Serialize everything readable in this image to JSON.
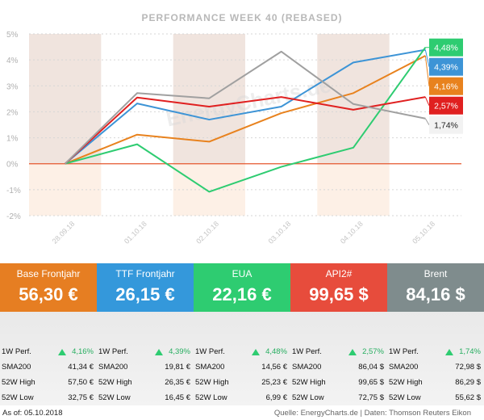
{
  "chart_data": {
    "type": "line",
    "title": "PERFORMANCE  WEEK 40 (REBASED)",
    "categories": [
      "28.09.18",
      "01.10.18",
      "02.10.18",
      "03.10.18",
      "04.10.18",
      "05.10.18"
    ],
    "y_ticks": [
      "5%",
      "4%",
      "3%",
      "2%",
      "1%",
      "0%",
      "-1%",
      "-2%"
    ],
    "ylim": [
      -2,
      5
    ],
    "grid": true,
    "shaded_bands": [
      "28.09.18",
      "02.10.18",
      "04.10.18"
    ],
    "watermark": "EnergyCharts.de",
    "series": [
      {
        "name": "Base Frontjahr",
        "color": "#e8821e",
        "values": [
          0,
          1.12,
          0.85,
          1.95,
          2.72,
          4.16
        ],
        "end_label": "4,16%"
      },
      {
        "name": "TTF Frontjahr",
        "color": "#3d94d6",
        "values": [
          0,
          2.32,
          1.7,
          2.2,
          3.9,
          4.39
        ],
        "end_label": "4,39%"
      },
      {
        "name": "EUA",
        "color": "#2ecc71",
        "values": [
          0,
          0.75,
          -1.08,
          -0.12,
          0.62,
          4.48
        ],
        "end_label": "4,48%"
      },
      {
        "name": "API2#",
        "color": "#e02020",
        "values": [
          0,
          2.55,
          2.2,
          2.57,
          2.08,
          2.57
        ],
        "end_label": "2,57%"
      },
      {
        "name": "Brent",
        "color": "#a0a0a0",
        "values": [
          0,
          2.72,
          2.52,
          4.32,
          2.3,
          1.74
        ],
        "end_label": "1,74%"
      }
    ]
  },
  "tiles": [
    {
      "name": "Base Frontjahr",
      "price": "56,30 €",
      "color": "#e67e22"
    },
    {
      "name": "TTF Frontjahr",
      "price": "26,15 €",
      "color": "#3498db"
    },
    {
      "name": "EUA",
      "price": "22,16 €",
      "color": "#2ecc71"
    },
    {
      "name": "API2#",
      "price": "99,65 $",
      "color": "#e74c3c"
    },
    {
      "name": "Brent",
      "price": "84,16 $",
      "color": "#7f8c8d"
    }
  ],
  "stats_labels": {
    "perf": "1W Perf.",
    "sma": "SMA200",
    "high": "52W High",
    "low": "52W Low"
  },
  "stats": [
    {
      "perf": "4,16%",
      "sma": "41,34 €",
      "high": "57,50 €",
      "low": "32,75 €"
    },
    {
      "perf": "4,39%",
      "sma": "19,81 €",
      "high": "26,35 €",
      "low": "16,45 €"
    },
    {
      "perf": "4,48%",
      "sma": "14,56 €",
      "high": "25,23 €",
      "low": "6,99 €"
    },
    {
      "perf": "2,57%",
      "sma": "86,04 $",
      "high": "99,65 $",
      "low": "72,75 $"
    },
    {
      "perf": "1,74%",
      "sma": "72,98 $",
      "high": "86,29 $",
      "low": "55,62 $"
    }
  ],
  "colors": {
    "perf_up": "#27ae60",
    "triangle": "#2ecc71"
  },
  "footer": {
    "as_of": "As of: 05.10.2018",
    "source": "Quelle: EnergyCharts.de | Daten: Thomson Reuters Eikon"
  }
}
